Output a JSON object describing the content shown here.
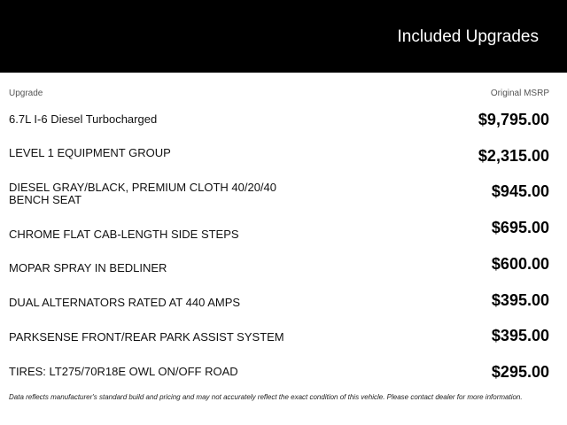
{
  "header": {
    "title": "Included Upgrades"
  },
  "table": {
    "columns": {
      "upgrade": "Upgrade",
      "msrp": "Original MSRP"
    },
    "rows": [
      {
        "name": "6.7L I-6 Diesel Turbocharged",
        "price": "$9,795.00"
      },
      {
        "name": "LEVEL 1 EQUIPMENT GROUP",
        "price": "$2,315.00"
      },
      {
        "name": "DIESEL GRAY/BLACK, PREMIUM CLOTH 40/20/40 BENCH SEAT",
        "price": "$945.00"
      },
      {
        "name": "CHROME FLAT CAB-LENGTH SIDE STEPS",
        "price": "$695.00"
      },
      {
        "name": "MOPAR SPRAY IN BEDLINER",
        "price": "$600.00"
      },
      {
        "name": "DUAL ALTERNATORS RATED AT 440 AMPS",
        "price": "$395.00"
      },
      {
        "name": "PARKSENSE FRONT/REAR PARK ASSIST SYSTEM",
        "price": "$395.00"
      },
      {
        "name": "TIRES: LT275/70R18E OWL ON/OFF ROAD",
        "price": "$295.00"
      }
    ]
  },
  "disclaimer": "Data reflects manufacturer's standard build and pricing and may not accurately reflect the exact condition of this vehicle. Please contact dealer for more information."
}
